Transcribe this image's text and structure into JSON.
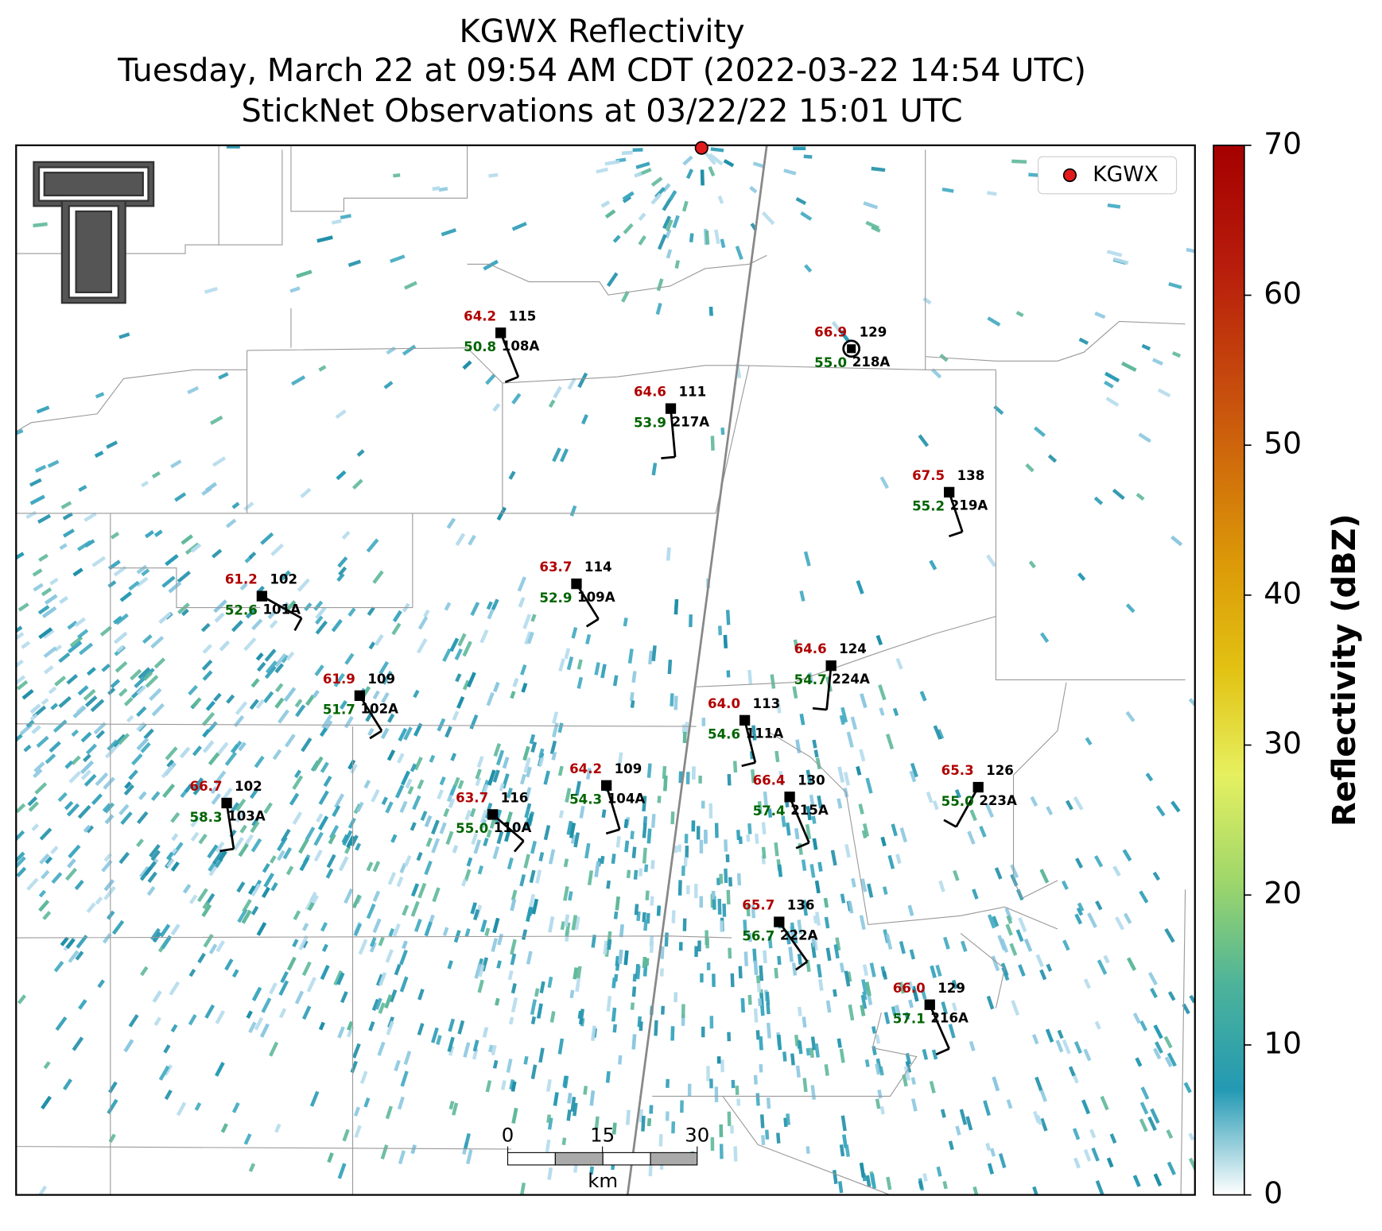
{
  "title_lines": [
    "KGWX Reflectivity",
    "Tuesday, March 22 at 09:54 AM CDT (2022-03-22 14:54 UTC)",
    "StickNet Observations at 03/22/22 15:01 UTC"
  ],
  "legend": {
    "label": "KGWX"
  },
  "colorbar": {
    "label": "Reflectivity (dBZ)",
    "lim": [
      0,
      70
    ],
    "ticks": [
      0,
      10,
      20,
      30,
      40,
      50,
      60,
      70
    ]
  },
  "scale_bar": {
    "ticks": [
      0,
      15,
      30
    ],
    "unit": "km"
  },
  "stations": [
    {
      "id": "108A",
      "temp": "64.2",
      "dewpoint": "50.8",
      "value": 115
    },
    {
      "id": "217A",
      "temp": "64.6",
      "dewpoint": "53.9",
      "value": 111
    },
    {
      "id": "218A",
      "temp": "66.9",
      "dewpoint": "55.0",
      "value": 129
    },
    {
      "id": "219A",
      "temp": "67.5",
      "dewpoint": "55.2",
      "value": 138
    },
    {
      "id": "101A",
      "temp": "61.2",
      "dewpoint": "52.6",
      "value": 102
    },
    {
      "id": "109A",
      "temp": "63.7",
      "dewpoint": "52.9",
      "value": 114
    },
    {
      "id": "224A",
      "temp": "64.6",
      "dewpoint": "54.7",
      "value": 124
    },
    {
      "id": "102A",
      "temp": "61.9",
      "dewpoint": "51.7",
      "value": 109
    },
    {
      "id": "111A",
      "temp": "64.0",
      "dewpoint": "54.6",
      "value": 113
    },
    {
      "id": "104A",
      "temp": "64.2",
      "dewpoint": "54.3",
      "value": 109
    },
    {
      "id": "215A",
      "temp": "66.4",
      "dewpoint": "57.4",
      "value": 130
    },
    {
      "id": "223A",
      "temp": "65.3",
      "dewpoint": "55.0",
      "value": 126
    },
    {
      "id": "103A",
      "temp": "66.7",
      "dewpoint": "58.3",
      "value": 102
    },
    {
      "id": "110A",
      "temp": "63.7",
      "dewpoint": "55.0",
      "value": 116
    },
    {
      "id": "222A",
      "temp": "65.7",
      "dewpoint": "56.7",
      "value": 136
    },
    {
      "id": "216A",
      "temp": "66.0",
      "dewpoint": "57.1",
      "value": 129
    }
  ]
}
